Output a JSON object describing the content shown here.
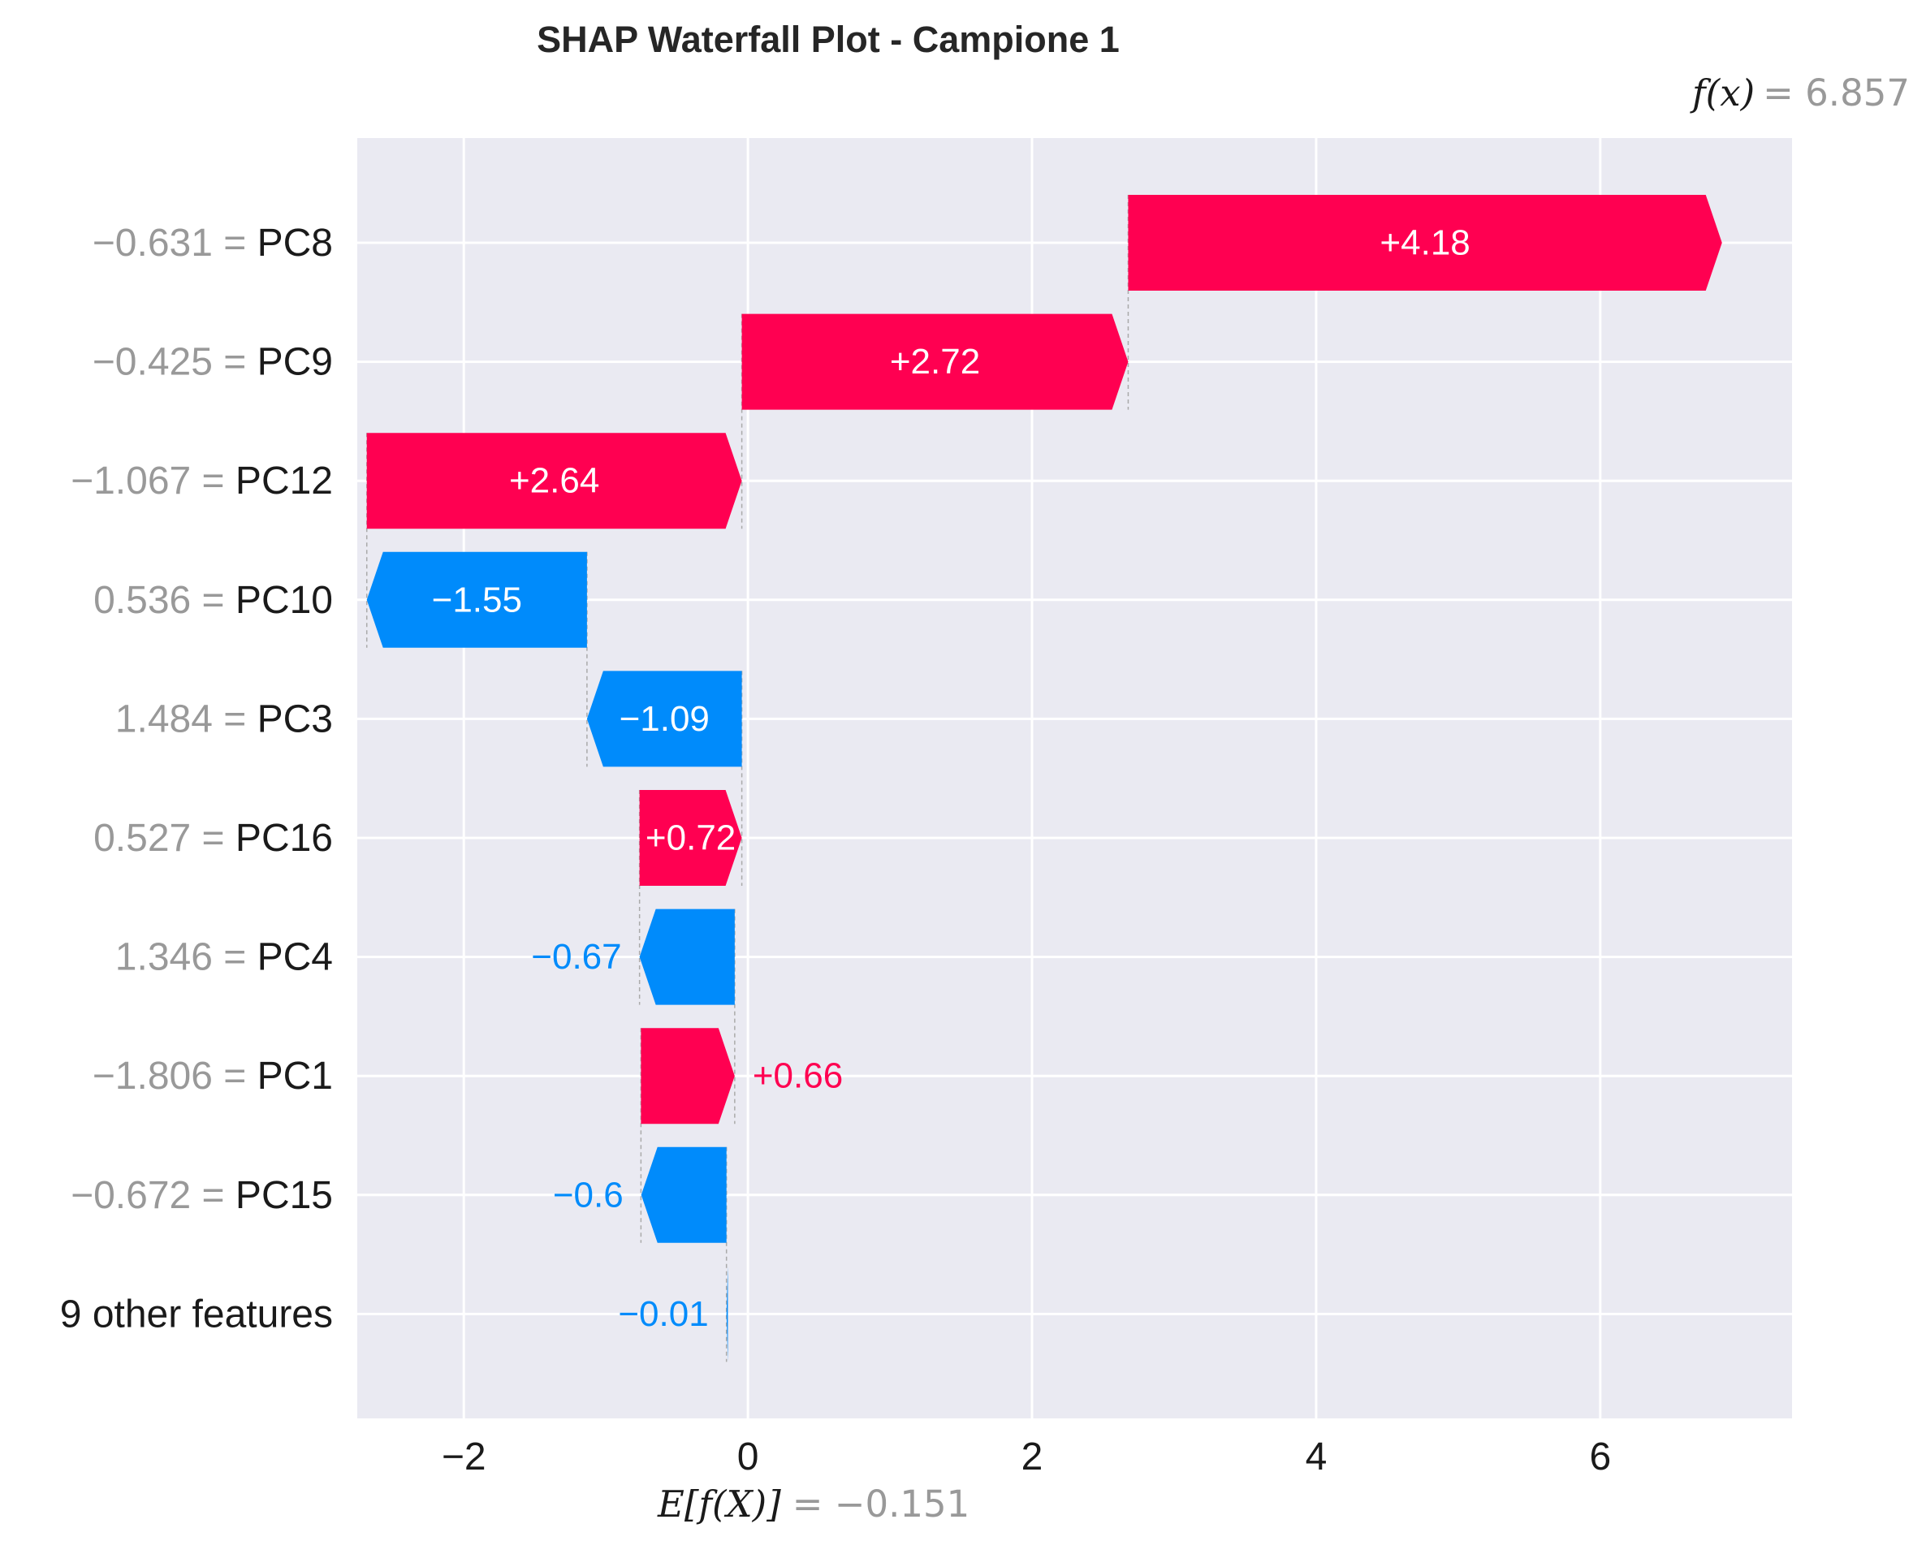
{
  "chart_data": {
    "type": "waterfall",
    "title": "SHAP Waterfall Plot - Campione 1",
    "fx": {
      "label": "f(x)",
      "value_text": "6.857",
      "value": 6.857
    },
    "base": {
      "label": "E[f(X)]",
      "value_text": "−0.151",
      "value": -0.151
    },
    "xlim": [
      -2.75,
      7.35
    ],
    "xticks": [
      -2,
      0,
      2,
      4,
      6
    ],
    "xtick_labels": [
      "−2",
      "0",
      "2",
      "4",
      "6"
    ],
    "grid": true,
    "positive_color": "#ff0051",
    "negative_color": "#008bfb",
    "rows": [
      {
        "feature_value": "−0.631",
        "feature": "PC8",
        "label": "+4.18",
        "start": 2.677,
        "end": 6.857
      },
      {
        "feature_value": "−0.425",
        "feature": "PC9",
        "label": "+2.72",
        "start": -0.043,
        "end": 2.677
      },
      {
        "feature_value": "−1.067",
        "feature": "PC12",
        "label": "+2.64",
        "start": -2.683,
        "end": -0.043
      },
      {
        "feature_value": "0.536",
        "feature": "PC10",
        "label": "−1.55",
        "start": -1.133,
        "end": -2.683
      },
      {
        "feature_value": "1.484",
        "feature": "PC3",
        "label": "−1.09",
        "start": -0.043,
        "end": -1.133
      },
      {
        "feature_value": "0.527",
        "feature": "PC16",
        "label": "+0.72",
        "start": -0.763,
        "end": -0.043
      },
      {
        "feature_value": "1.346",
        "feature": "PC4",
        "label": "−0.67",
        "start": -0.093,
        "end": -0.763
      },
      {
        "feature_value": "−1.806",
        "feature": "PC1",
        "label": "+0.66",
        "start": -0.753,
        "end": -0.093
      },
      {
        "feature_value": "−0.672",
        "feature": "PC15",
        "label": "−0.6",
        "start": -0.151,
        "end": -0.751
      },
      {
        "feature_value": "",
        "feature": "9 other features",
        "label": "−0.01",
        "start": -0.141,
        "end": -0.151
      }
    ]
  }
}
